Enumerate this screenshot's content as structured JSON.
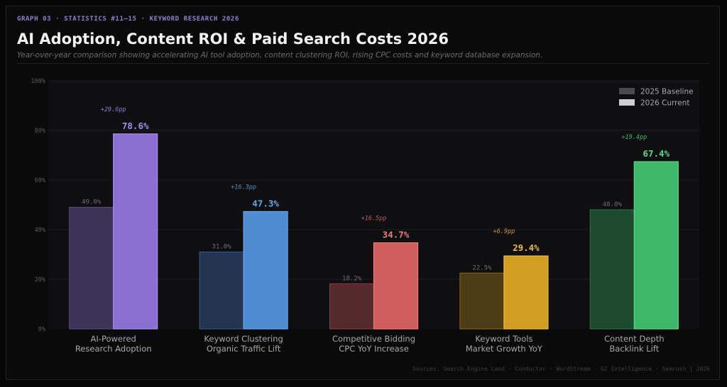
{
  "header": {
    "eyebrow": "GRAPH 03  ·  STATISTICS #11–15  ·  KEYWORD RESEARCH 2026",
    "title": "AI Adoption, Content ROI & Paid Search Costs 2026",
    "subtitle": "Year-over-year comparison showing accelerating AI tool adoption, content clustering ROI, rising CPC costs and keyword database expansion."
  },
  "footer": {
    "sources": "Sources: Search Engine Land · Conductor · WordStream · G2 Intelligence · Semrush  |  2026"
  },
  "chart_data": {
    "type": "bar",
    "ylim": [
      0,
      100
    ],
    "yticks": [
      0,
      20,
      40,
      60,
      80,
      100
    ],
    "ytick_labels": [
      "0%",
      "20%",
      "40%",
      "60%",
      "80%",
      "100%"
    ],
    "grid": true,
    "legend_position": "top-right",
    "categories": [
      [
        "AI-Powered",
        "Research Adoption"
      ],
      [
        "Keyword Clustering",
        "Organic Traffic Lift"
      ],
      [
        "Competitive Bidding",
        "CPC YoY Increase"
      ],
      [
        "Keyword Tools",
        "Market Growth YoY"
      ],
      [
        "Content Depth",
        "Backlink Lift"
      ]
    ],
    "series": [
      {
        "name": "2025 Baseline",
        "values": [
          49.0,
          31.0,
          18.2,
          22.5,
          48.0
        ],
        "labels": [
          "49.0%",
          "31.0%",
          "18.2%",
          "22.5%",
          "48.0%"
        ]
      },
      {
        "name": "2026 Current",
        "values": [
          78.6,
          47.3,
          34.7,
          29.4,
          67.4
        ],
        "labels": [
          "78.6%",
          "47.3%",
          "34.7%",
          "29.4%",
          "67.4%"
        ]
      }
    ],
    "deltas": [
      "+29.6pp",
      "+16.3pp",
      "+16.5pp",
      "+6.9pp",
      "+19.4pp"
    ],
    "colors": {
      "current": [
        "#8b6fd1",
        "#4f8bd0",
        "#d05e5e",
        "#d19e22",
        "#3fb86a"
      ],
      "current_border": [
        "#a58df0",
        "#6aa6ee",
        "#f07979",
        "#f0bb3a",
        "#5ad688"
      ],
      "baseline": [
        "#3c3456",
        "#243552",
        "#542a2c",
        "#4d3d16",
        "#1e4a2f"
      ],
      "baseline_border": [
        "#5a4d82",
        "#3a5a88",
        "#8a4145",
        "#856a22",
        "#2f7448"
      ],
      "value_text": [
        "#a58df0",
        "#6aa6ee",
        "#f07979",
        "#f0bb3a",
        "#5ad688"
      ],
      "delta_text": [
        "#8a7bd0",
        "#5b88c6",
        "#c25b5b",
        "#c79a2e",
        "#3fb86a"
      ],
      "legend_baseline": "#4a4a4a",
      "legend_current": "#cfcfcf"
    }
  }
}
